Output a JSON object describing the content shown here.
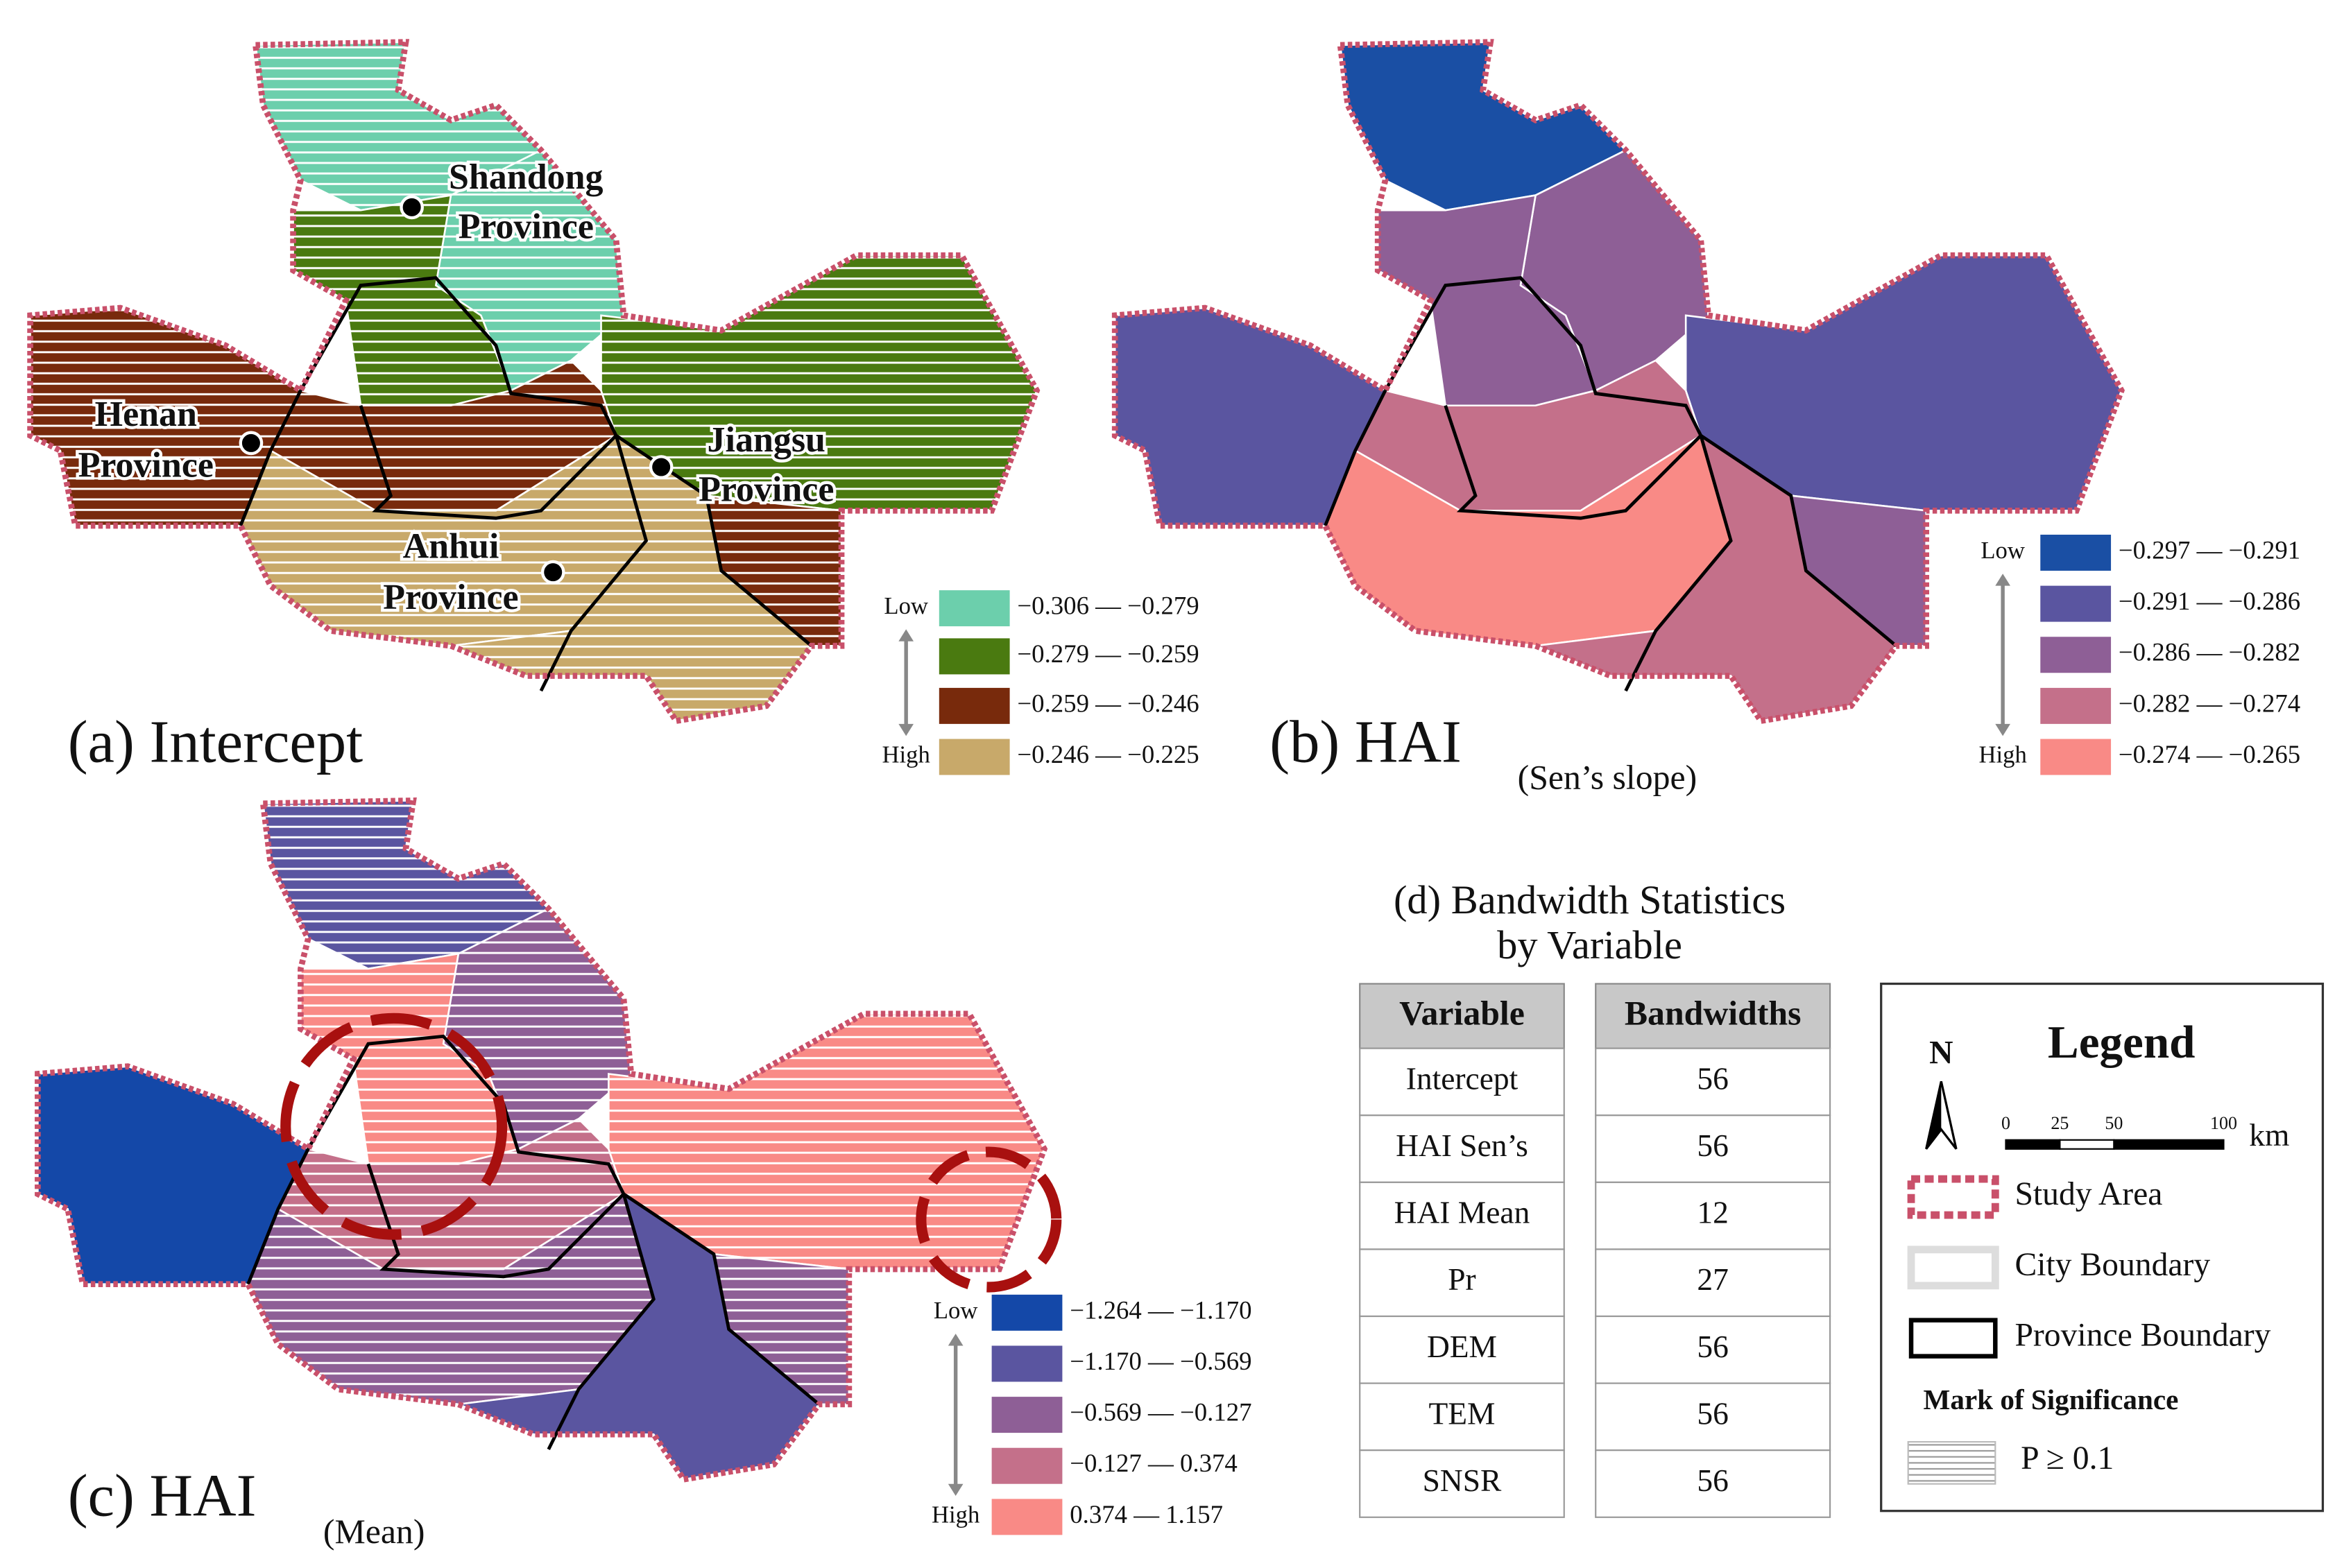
{
  "panels": [
    {
      "label": "(a) Intercept",
      "legend": {
        "low": "Low",
        "high": "High",
        "classes": [
          {
            "range": "−0.306 — −0.279",
            "color": "#6ccfac"
          },
          {
            "range": "−0.279 — −0.259",
            "color": "#4a7a10"
          },
          {
            "range": "−0.259 — −0.246",
            "color": "#782a0c"
          },
          {
            "range": "−0.246 — −0.225",
            "color": "#c8a96a"
          }
        ]
      },
      "places": [
        {
          "lines": [
            "Shandong",
            "Province"
          ]
        },
        {
          "lines": [
            "Henan",
            "Province"
          ]
        },
        {
          "lines": [
            "Jiangsu",
            "Province"
          ]
        },
        {
          "lines": [
            "Anhui",
            "Province"
          ]
        }
      ]
    },
    {
      "label": "(b) HAI",
      "sublabel": "(Sen’s slope)",
      "legend": {
        "low": "Low",
        "high": "High",
        "classes": [
          {
            "range": "−0.297 — −0.291",
            "color": "#1a4fa4"
          },
          {
            "range": "−0.291 — −0.286",
            "color": "#5a55a0"
          },
          {
            "range": "−0.286 — −0.282",
            "color": "#8e5f96"
          },
          {
            "range": "−0.282 — −0.274",
            "color": "#c4708a"
          },
          {
            "range": "−0.274 — −0.265",
            "color": "#f98a86"
          }
        ]
      }
    },
    {
      "label": "(c) HAI",
      "sublabel": "(Mean)",
      "legend": {
        "low": "Low",
        "high": "High",
        "classes": [
          {
            "range": "−1.264 — −1.170",
            "color": "#1448a8"
          },
          {
            "range": "−1.170 — −0.569",
            "color": "#5a55a0"
          },
          {
            "range": "−0.569 — −0.127",
            "color": "#8e5f96"
          },
          {
            "range": "−0.127 — 0.374",
            "color": "#c4708a"
          },
          {
            "range": "0.374 — 1.157",
            "color": "#f98a86"
          }
        ]
      }
    }
  ],
  "table": {
    "title": [
      "(d) Bandwidth Statistics",
      "by Variable"
    ],
    "header": [
      "Variable",
      "Bandwidths"
    ],
    "rows": [
      [
        "Intercept",
        56
      ],
      [
        "HAI Sen’s",
        56
      ],
      [
        "HAI Mean",
        12
      ],
      [
        "Pr",
        27
      ],
      [
        "DEM",
        56
      ],
      [
        "TEM",
        56
      ],
      [
        "SNSR",
        56
      ]
    ]
  },
  "legend": {
    "north": "N",
    "title": "Legend",
    "scale_labels": [
      "0",
      "25",
      "50",
      "100"
    ],
    "scale_unit": "km",
    "items": [
      "Study Area",
      "City Boundary",
      "Province Boundary"
    ],
    "significance_title": "Mark of Significance",
    "significance_item": "P ≥ 0.1"
  }
}
